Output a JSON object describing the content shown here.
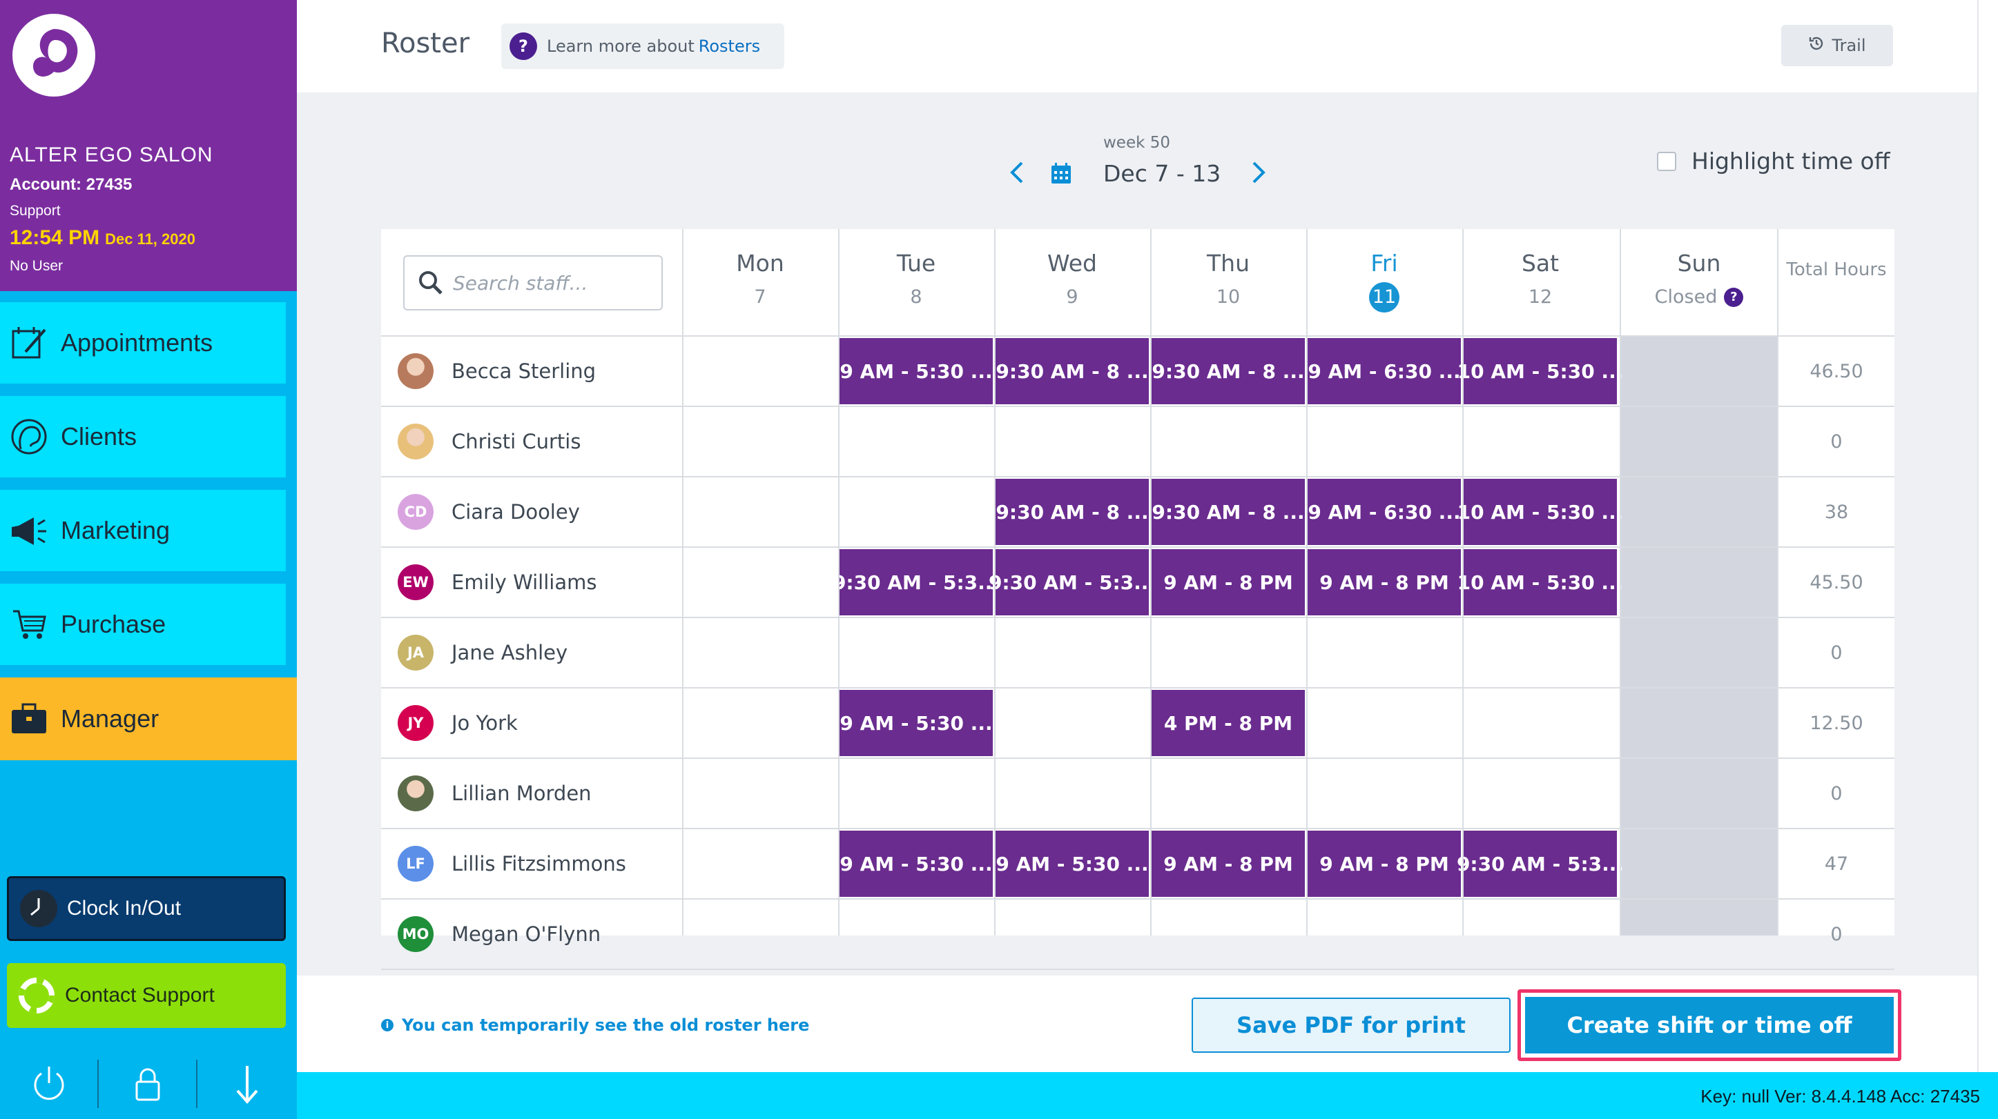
{
  "sidebar": {
    "salon_name": "ALTER EGO SALON",
    "account": "Account: 27435",
    "role": "Support",
    "time": "12:54 PM",
    "date": "Dec 11, 2020",
    "user": "No User",
    "nav": {
      "appointments": "Appointments",
      "clients": "Clients",
      "marketing": "Marketing",
      "purchase": "Purchase",
      "manager": "Manager"
    },
    "clock_label": "Clock In/Out",
    "support_label": "Contact Support"
  },
  "header": {
    "title": "Roster",
    "learn_prefix": "Learn more about",
    "learn_link": "Rosters",
    "trail_label": "Trail"
  },
  "week": {
    "label": "week 50",
    "range": "Dec 7 - 13",
    "highlight_label": "Highlight time off"
  },
  "search": {
    "placeholder": "Search staff..."
  },
  "days": [
    {
      "name": "Mon",
      "date": "7"
    },
    {
      "name": "Tue",
      "date": "8"
    },
    {
      "name": "Wed",
      "date": "9"
    },
    {
      "name": "Thu",
      "date": "10"
    },
    {
      "name": "Fri",
      "date": "11"
    },
    {
      "name": "Sat",
      "date": "12"
    },
    {
      "name": "Sun",
      "date": "Closed"
    }
  ],
  "total_header": "Total Hours",
  "staff": [
    {
      "name": "Becca Sterling",
      "initials": "",
      "total": "46.50",
      "shifts": [
        "",
        "9 AM - 5:30 ...",
        "9:30 AM - 8 ...",
        "9:30 AM - 8 ...",
        "9 AM - 6:30 ...",
        "10 AM - 5:30 ...",
        ""
      ]
    },
    {
      "name": "Christi Curtis",
      "initials": "",
      "total": "0",
      "shifts": [
        "",
        "",
        "",
        "",
        "",
        "",
        ""
      ]
    },
    {
      "name": "Ciara Dooley",
      "initials": "CD",
      "total": "38",
      "shifts": [
        "",
        "",
        "9:30 AM - 8 ...",
        "9:30 AM - 8 ...",
        "9 AM - 6:30 ...",
        "10 AM - 5:30 ...",
        ""
      ]
    },
    {
      "name": "Emily Williams",
      "initials": "EW",
      "total": "45.50",
      "shifts": [
        "",
        "9:30 AM - 5:3...",
        "9:30 AM - 5:3...",
        "9 AM - 8 PM",
        "9 AM - 8 PM",
        "10 AM - 5:30 ...",
        ""
      ]
    },
    {
      "name": "Jane Ashley",
      "initials": "JA",
      "total": "0",
      "shifts": [
        "",
        "",
        "",
        "",
        "",
        "",
        ""
      ]
    },
    {
      "name": "Jo York",
      "initials": "JY",
      "total": "12.50",
      "shifts": [
        "",
        "9 AM - 5:30 ...",
        "",
        "4 PM - 8 PM",
        "",
        "",
        ""
      ]
    },
    {
      "name": "Lillian Morden",
      "initials": "",
      "total": "0",
      "shifts": [
        "",
        "",
        "",
        "",
        "",
        "",
        ""
      ]
    },
    {
      "name": "Lillis Fitzsimmons",
      "initials": "LF",
      "total": "47",
      "shifts": [
        "",
        "9 AM - 5:30 ...",
        "9 AM - 5:30 ...",
        "9 AM - 8 PM",
        "9 AM - 8 PM",
        "9:30 AM - 5:3...",
        ""
      ]
    },
    {
      "name": "Megan O'Flynn",
      "initials": "MO",
      "total": "0",
      "shifts": [
        "",
        "",
        "",
        "",
        "",
        "",
        ""
      ]
    }
  ],
  "footer": {
    "old_roster": "You can temporarily see the old roster here",
    "save_pdf": "Save PDF for print",
    "create": "Create shift or time off"
  },
  "status": "Key: null Ver: 8.4.4.148 Acc: 27435",
  "colors": {
    "sidebar_header": "#7b2d9f",
    "sidebar_bg": "#00b6ee",
    "nav_item": "#00e0ff",
    "manager": "#fdb827",
    "shift": "#6a2c8f",
    "accent": "#0a97d6",
    "highlight_frame": "#f0336a",
    "avatar_cd": "#d9a3e0",
    "avatar_ew": "#b0006a",
    "avatar_ja": "#c8b56a",
    "avatar_jy": "#d5004f",
    "avatar_lf": "#5b8fe8",
    "avatar_mo": "#1f8f3a"
  }
}
